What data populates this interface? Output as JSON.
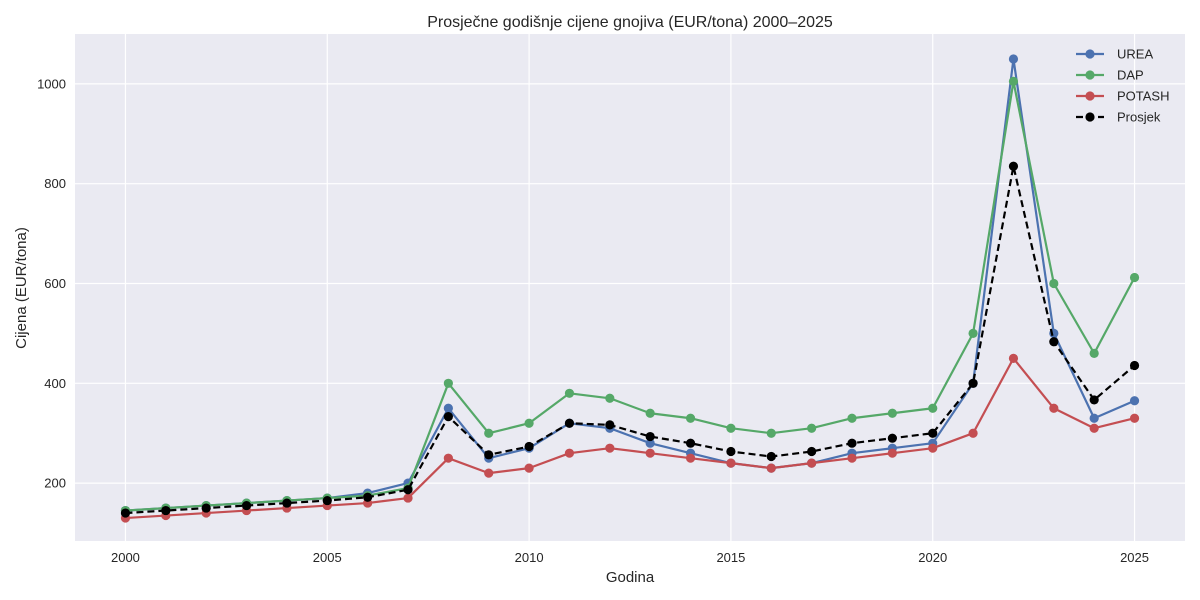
{
  "chart_data": {
    "type": "line",
    "title": "Prosječne godišnje cijene gnojiva (EUR/tona) 2000–2025",
    "xlabel": "Godina",
    "ylabel": "Cijena (EUR/tona)",
    "xlim": [
      1998.75,
      2026.25
    ],
    "ylim": [
      84,
      1100
    ],
    "xticks": [
      2000,
      2005,
      2010,
      2015,
      2020,
      2025
    ],
    "yticks": [
      200,
      400,
      600,
      800,
      1000
    ],
    "grid": true,
    "legend_position": "top-right",
    "x": [
      2000,
      2001,
      2002,
      2003,
      2004,
      2005,
      2006,
      2007,
      2008,
      2009,
      2010,
      2011,
      2012,
      2013,
      2014,
      2015,
      2016,
      2017,
      2018,
      2019,
      2020,
      2021,
      2022,
      2023,
      2024,
      2025
    ],
    "series": [
      {
        "name": "UREA",
        "color": "#4c72b0",
        "dashed": false,
        "values": [
          145,
          150,
          155,
          160,
          165,
          170,
          180,
          200,
          350,
          250,
          270,
          320,
          310,
          280,
          260,
          240,
          230,
          240,
          260,
          270,
          280,
          400,
          1050,
          500,
          330,
          365
        ]
      },
      {
        "name": "DAP",
        "color": "#55a868",
        "dashed": false,
        "values": [
          145,
          150,
          155,
          160,
          165,
          170,
          175,
          190,
          400,
          300,
          320,
          380,
          370,
          340,
          330,
          310,
          300,
          310,
          330,
          340,
          350,
          500,
          1005,
          600,
          460,
          612
        ]
      },
      {
        "name": "POTASH",
        "color": "#c44e52",
        "dashed": false,
        "values": [
          130,
          135,
          140,
          145,
          150,
          155,
          160,
          170,
          250,
          220,
          230,
          260,
          270,
          260,
          250,
          240,
          230,
          240,
          250,
          260,
          270,
          300,
          450,
          350,
          310,
          330
        ]
      },
      {
        "name": "Prosjek",
        "color": "#000000",
        "dashed": true,
        "values": [
          140,
          145,
          150,
          155,
          160,
          165,
          171.7,
          186.7,
          333.3,
          256.7,
          273.3,
          320,
          316.7,
          293.3,
          280,
          263.3,
          253.3,
          263.3,
          280,
          290,
          300,
          400,
          835,
          483.3,
          366.7,
          435.7
        ]
      }
    ]
  }
}
